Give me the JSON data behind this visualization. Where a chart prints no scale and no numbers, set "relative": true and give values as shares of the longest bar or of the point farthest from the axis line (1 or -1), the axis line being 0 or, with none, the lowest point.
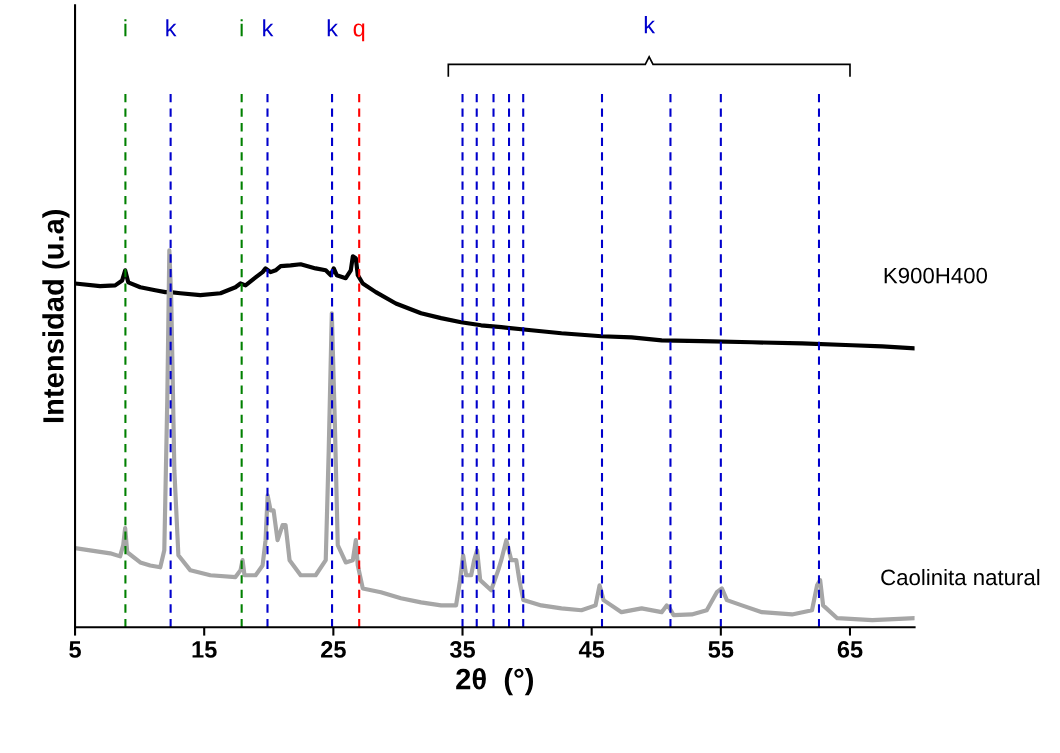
{
  "chart_data": {
    "type": "line",
    "relative": true,
    "xlabel": "2θ  (°)",
    "ylabel": "Intensidad (u.a)",
    "xlim": [
      5,
      70
    ],
    "xticks": [
      5,
      15,
      25,
      35,
      45,
      55,
      65
    ],
    "grid": false,
    "legend": false,
    "marker": "none",
    "line_style": "solid",
    "tick_labels": "x",
    "series": [
      {
        "name": "K900H400",
        "color": "#000000",
        "x": [
          5.0,
          6.94,
          8.11,
          8.65,
          8.88,
          9.12,
          10.05,
          11.21,
          11.99,
          12.38,
          13.15,
          14.7,
          16.26,
          17.42,
          17.81,
          18.2,
          18.98,
          19.52,
          19.75,
          20.14,
          20.53,
          20.92,
          21.69,
          22.47,
          23.63,
          24.41,
          24.8,
          25.03,
          25.26,
          25.96,
          26.35,
          26.51,
          26.74,
          26.89,
          27.28,
          28.29,
          29.84,
          31.79,
          33.34,
          34.89,
          36.44,
          38.0,
          40.33,
          42.66,
          45.76,
          48.09,
          50.42,
          53.52,
          57.41,
          61.29,
          65.17,
          67.5,
          70.0
        ],
        "values": [
          0.912,
          0.905,
          0.907,
          0.92,
          0.947,
          0.915,
          0.902,
          0.894,
          0.889,
          0.889,
          0.886,
          0.881,
          0.886,
          0.902,
          0.912,
          0.907,
          0.928,
          0.942,
          0.952,
          0.942,
          0.947,
          0.958,
          0.96,
          0.963,
          0.952,
          0.947,
          0.934,
          0.952,
          0.934,
          0.926,
          0.947,
          0.984,
          0.979,
          0.934,
          0.912,
          0.889,
          0.859,
          0.833,
          0.82,
          0.809,
          0.801,
          0.796,
          0.788,
          0.78,
          0.772,
          0.769,
          0.761,
          0.759,
          0.756,
          0.753,
          0.748,
          0.745,
          0.74
        ]
      },
      {
        "name": "Caolinita natural",
        "color": "#a6a6a6",
        "x": [
          5.0,
          6.16,
          7.72,
          8.49,
          8.73,
          8.88,
          9.04,
          10.05,
          10.82,
          11.6,
          11.91,
          12.14,
          12.3,
          12.45,
          12.69,
          13.0,
          13.93,
          15.48,
          17.42,
          17.81,
          17.97,
          18.12,
          18.98,
          19.52,
          19.75,
          19.91,
          20.14,
          20.37,
          20.68,
          21.07,
          21.3,
          21.61,
          22.47,
          23.63,
          24.41,
          24.64,
          24.88,
          25.11,
          25.34,
          25.96,
          26.51,
          26.74,
          26.89,
          27.28,
          28.68,
          30.23,
          31.79,
          33.34,
          34.5,
          34.81,
          35.05,
          35.28,
          35.67,
          35.9,
          36.13,
          36.37,
          37.22,
          37.76,
          38.0,
          38.39,
          38.78,
          39.16,
          39.4,
          39.71,
          41.1,
          42.66,
          44.21,
          45.3,
          45.61,
          45.92,
          47.31,
          48.87,
          50.42,
          50.81,
          51.04,
          51.35,
          52.75,
          53.91,
          54.69,
          55.08,
          55.47,
          56.63,
          58.18,
          60.51,
          62.06,
          62.45,
          62.69,
          62.92,
          64.01,
          66.73,
          70.0
        ],
        "values": [
          0.21,
          0.204,
          0.196,
          0.188,
          0.218,
          0.263,
          0.199,
          0.172,
          0.164,
          0.159,
          0.204,
          0.602,
          1.0,
          0.867,
          0.416,
          0.191,
          0.151,
          0.138,
          0.133,
          0.151,
          0.178,
          0.138,
          0.138,
          0.164,
          0.231,
          0.35,
          0.31,
          0.31,
          0.231,
          0.271,
          0.271,
          0.178,
          0.138,
          0.138,
          0.178,
          0.469,
          0.833,
          0.549,
          0.218,
          0.172,
          0.178,
          0.231,
          0.164,
          0.103,
          0.093,
          0.077,
          0.066,
          0.058,
          0.058,
          0.125,
          0.191,
          0.138,
          0.138,
          0.178,
          0.204,
          0.125,
          0.098,
          0.151,
          0.178,
          0.231,
          0.178,
          0.178,
          0.125,
          0.072,
          0.058,
          0.05,
          0.045,
          0.058,
          0.111,
          0.072,
          0.04,
          0.05,
          0.04,
          0.058,
          0.05,
          0.032,
          0.034,
          0.045,
          0.093,
          0.103,
          0.072,
          0.058,
          0.04,
          0.034,
          0.045,
          0.111,
          0.125,
          0.058,
          0.024,
          0.019,
          0.024
        ]
      }
    ],
    "ref_lines": [
      {
        "axis": "x",
        "value": 8.9,
        "label": "i",
        "color": "#008000",
        "line_style": "dashed"
      },
      {
        "axis": "x",
        "value": 12.4,
        "label": "k",
        "color": "#0000cc",
        "line_style": "dashed"
      },
      {
        "axis": "x",
        "value": 17.9,
        "label": "i",
        "color": "#008000",
        "line_style": "dashed"
      },
      {
        "axis": "x",
        "value": 19.9,
        "label": "k",
        "color": "#0000cc",
        "line_style": "dashed"
      },
      {
        "axis": "x",
        "value": 24.9,
        "label": "k",
        "color": "#0000cc",
        "line_style": "dashed"
      },
      {
        "axis": "x",
        "value": 27.0,
        "label": "q",
        "color": "#ff0000",
        "line_style": "dashed"
      },
      {
        "axis": "x",
        "value": 35.0,
        "color": "#0000cc",
        "line_style": "dashed"
      },
      {
        "axis": "x",
        "value": 36.1,
        "color": "#0000cc",
        "line_style": "dashed"
      },
      {
        "axis": "x",
        "value": 37.4,
        "color": "#0000cc",
        "line_style": "dashed"
      },
      {
        "axis": "x",
        "value": 38.6,
        "color": "#0000cc",
        "line_style": "dashed"
      },
      {
        "axis": "x",
        "value": 39.7,
        "color": "#0000cc",
        "line_style": "dashed"
      },
      {
        "axis": "x",
        "value": 45.8,
        "color": "#0000cc",
        "line_style": "dashed"
      },
      {
        "axis": "x",
        "value": 51.1,
        "color": "#0000cc",
        "line_style": "dashed"
      },
      {
        "axis": "x",
        "value": 55.0,
        "color": "#0000cc",
        "line_style": "dashed"
      },
      {
        "axis": "x",
        "value": 62.6,
        "color": "#0000cc",
        "line_style": "dashed"
      }
    ],
    "annotations": [
      "k"
    ]
  }
}
